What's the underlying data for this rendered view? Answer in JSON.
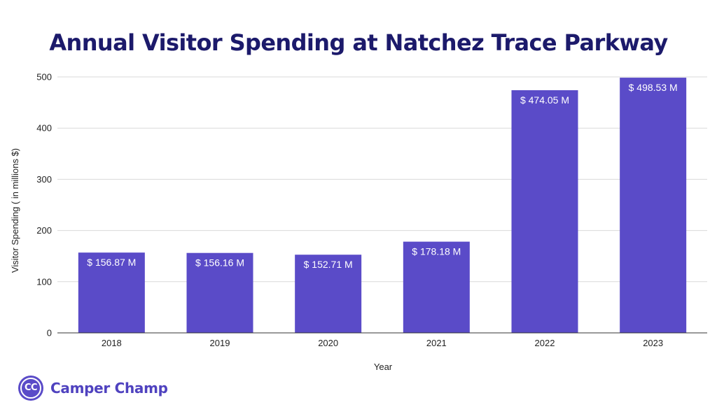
{
  "chart_data": {
    "type": "bar",
    "title": "Annual Visitor Spending at Natchez Trace Parkway",
    "xlabel": "Year",
    "ylabel": "Visitor Spending ( in millions $)",
    "categories": [
      "2018",
      "2019",
      "2020",
      "2021",
      "2022",
      "2023"
    ],
    "values": [
      156.87,
      156.16,
      152.71,
      178.18,
      474.05,
      498.53
    ],
    "data_labels": [
      "$ 156.87 M",
      "$ 156.16 M",
      "$ 152.71 M",
      "$ 178.18 M",
      "$ 474.05 M",
      "$ 498.53 M"
    ],
    "ylim": [
      0,
      500
    ],
    "yticks": [
      0,
      100,
      200,
      300,
      400,
      500
    ],
    "grid": true,
    "bar_color": "#5a4bc8",
    "grid_color": "#d9d9d9"
  },
  "brand": {
    "logo_text": "CC",
    "name": "Camper Champ",
    "color": "#4f42bf"
  }
}
